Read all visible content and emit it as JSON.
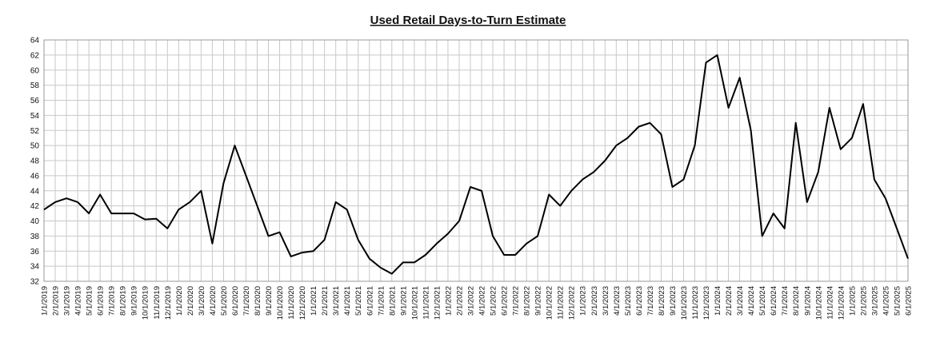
{
  "chart_data": {
    "type": "line",
    "title": "Used Retail Days-to-Turn Estimate",
    "categories": [
      "1/1/2019",
      "2/1/2019",
      "3/1/2019",
      "4/1/2019",
      "5/1/2019",
      "6/1/2019",
      "7/1/2019",
      "8/1/2019",
      "9/1/2019",
      "10/1/2019",
      "11/1/2019",
      "12/1/2019",
      "1/1/2020",
      "2/1/2020",
      "3/1/2020",
      "4/1/2020",
      "5/1/2020",
      "6/1/2020",
      "7/1/2020",
      "8/1/2020",
      "9/1/2020",
      "10/1/2020",
      "11/1/2020",
      "12/1/2020",
      "1/1/2021",
      "2/1/2021",
      "3/1/2021",
      "4/1/2021",
      "5/1/2021",
      "6/1/2021",
      "7/1/2021",
      "8/1/2021",
      "9/1/2021",
      "10/1/2021",
      "11/1/2021",
      "12/1/2021",
      "1/1/2022",
      "2/1/2022",
      "3/1/2022",
      "4/1/2022",
      "5/1/2022",
      "6/1/2022",
      "7/1/2022",
      "8/1/2022",
      "9/1/2022",
      "10/1/2022",
      "11/1/2022",
      "12/1/2022",
      "1/1/2023",
      "2/1/2023",
      "3/1/2023",
      "4/1/2023",
      "5/1/2023",
      "6/1/2023",
      "7/1/2023",
      "8/1/2023",
      "9/1/2023",
      "10/1/2023",
      "11/1/2023",
      "12/1/2023",
      "1/1/2024",
      "2/1/2024",
      "3/1/2024",
      "4/1/2024",
      "5/1/2024",
      "6/1/2024",
      "7/1/2024",
      "8/1/2024",
      "9/1/2024",
      "10/1/2024",
      "11/1/2024",
      "12/1/2024",
      "1/1/2025",
      "2/1/2025",
      "3/1/2025",
      "4/1/2025",
      "5/1/2025",
      "6/1/2025"
    ],
    "series": [
      {
        "color": "#000000",
        "values": [
          41.5,
          42.5,
          43,
          42.5,
          41,
          43.5,
          41,
          41,
          41,
          40.2,
          40.3,
          39,
          41.5,
          42.5,
          44,
          37,
          45,
          50,
          46,
          42,
          38,
          38.5,
          35.3,
          35.8,
          36,
          37.5,
          42.5,
          41.5,
          37.5,
          35,
          33.8,
          33,
          34.5,
          34.5,
          35.5,
          37,
          38.3,
          40,
          44.5,
          44,
          38,
          35.5,
          35.5,
          37,
          38,
          43.5,
          42,
          44,
          45.5,
          46.5,
          48,
          50,
          51,
          52.5,
          53,
          51.5,
          44.5,
          45.5,
          50,
          61,
          62,
          55,
          59,
          52,
          38,
          41,
          39,
          53,
          42.5,
          46.5,
          55,
          49.5,
          51,
          55.5,
          45.5,
          43,
          39,
          35
        ]
      }
    ],
    "ylim": [
      32,
      64
    ],
    "yticks": [
      32,
      34,
      36,
      38,
      40,
      42,
      44,
      46,
      48,
      50,
      52,
      54,
      56,
      58,
      60,
      62,
      64
    ],
    "grid": true
  }
}
